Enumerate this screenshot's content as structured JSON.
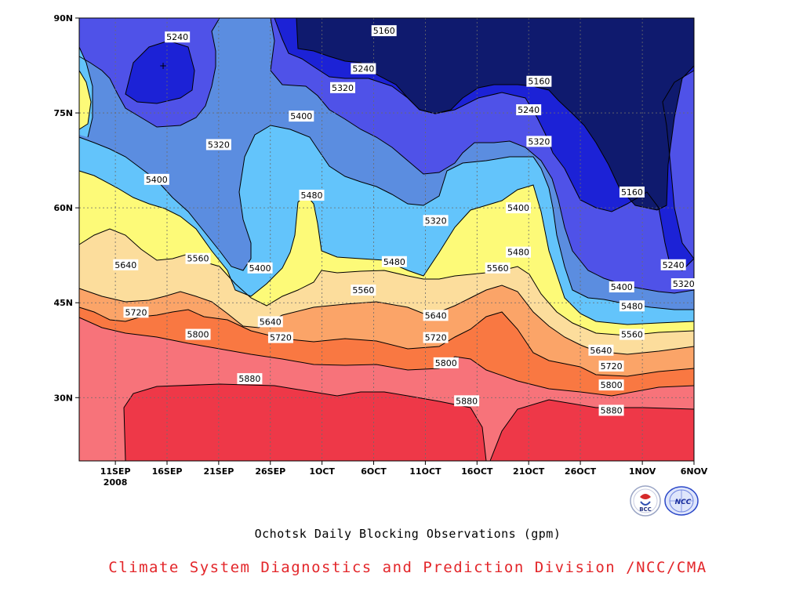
{
  "chart_data": {
    "type": "contour",
    "title": "Ochotsk Daily Blocking Observations (gpm)",
    "source": "Climate System Diagnostics and Prediction Division /NCC/CMA",
    "x_ticks": [
      "11SEP",
      "16SEP",
      "21SEP",
      "26SEP",
      "1OCT",
      "6OCT",
      "11OCT",
      "16OCT",
      "21OCT",
      "26OCT",
      "1NOV",
      "6NOV"
    ],
    "x_year_label": "2008",
    "y_ticks": [
      "90N",
      "75N",
      "60N",
      "45N",
      "30N"
    ],
    "y_tick_values": [
      90,
      75,
      60,
      45,
      30
    ],
    "ylim": [
      20,
      90
    ],
    "grid": true,
    "contour_levels": [
      5160,
      5240,
      5320,
      5400,
      5480,
      5560,
      5640,
      5720,
      5800,
      5880
    ],
    "fill_colors": {
      "below_5160": "#0f1a6e",
      "5160_5240": "#1c22d6",
      "5240_5320": "#4f52e8",
      "5320_5400": "#5b8de0",
      "5400_5480": "#63c4fb",
      "5480_5560": "#fdfa78",
      "5560_5640": "#fcdd9c",
      "5640_5720": "#fba468",
      "5720_5800": "#f97842",
      "5800_5880": "#f7737a",
      "above_5880": "#ee3848"
    },
    "contour_labels": [
      {
        "text": "5240",
        "date": "16SEP",
        "lat": 87
      },
      {
        "text": "5160",
        "date": "6OCT",
        "lat": 88
      },
      {
        "text": "5240",
        "date": "4OCT",
        "lat": 82
      },
      {
        "text": "5160",
        "date": "21OCT",
        "lat": 80
      },
      {
        "text": "5320",
        "date": "2OCT",
        "lat": 79
      },
      {
        "text": "5240",
        "date": "20OCT",
        "lat": 75.5
      },
      {
        "text": "5400",
        "date": "28SEP",
        "lat": 74.5
      },
      {
        "text": "5320",
        "date": "20SEP",
        "lat": 70
      },
      {
        "text": "5320",
        "date": "21OCT",
        "lat": 70.5
      },
      {
        "text": "5400",
        "date": "14SEP",
        "lat": 64.5
      },
      {
        "text": "5160",
        "date": "30OCT",
        "lat": 62.5
      },
      {
        "text": "5480",
        "date": "29SEP",
        "lat": 62
      },
      {
        "text": "5400",
        "date": "19OCT",
        "lat": 60
      },
      {
        "text": "5320",
        "date": "11OCT",
        "lat": 58
      },
      {
        "text": "5480",
        "date": "19OCT",
        "lat": 53
      },
      {
        "text": "5560",
        "date": "18SEP",
        "lat": 52
      },
      {
        "text": "5480",
        "date": "7OCT",
        "lat": 51.5
      },
      {
        "text": "5640",
        "date": "11SEP",
        "lat": 51
      },
      {
        "text": "5400",
        "date": "24SEP",
        "lat": 50.5
      },
      {
        "text": "5560",
        "date": "17OCT",
        "lat": 50.5
      },
      {
        "text": "5240",
        "date": "3NOV",
        "lat": 51
      },
      {
        "text": "5320",
        "date": "4NOV",
        "lat": 48
      },
      {
        "text": "5560",
        "date": "4OCT",
        "lat": 47
      },
      {
        "text": "5400",
        "date": "29OCT",
        "lat": 47.5
      },
      {
        "text": "5720",
        "date": "12SEP",
        "lat": 43.5
      },
      {
        "text": "5480",
        "date": "30OCT",
        "lat": 44.5
      },
      {
        "text": "5640",
        "date": "11OCT",
        "lat": 43
      },
      {
        "text": "5640",
        "date": "25SEP",
        "lat": 42
      },
      {
        "text": "5800",
        "date": "18SEP",
        "lat": 40
      },
      {
        "text": "5560",
        "date": "30OCT",
        "lat": 40
      },
      {
        "text": "5720",
        "date": "26SEP",
        "lat": 39.5
      },
      {
        "text": "5720",
        "date": "11OCT",
        "lat": 39.5
      },
      {
        "text": "5640",
        "date": "27OCT",
        "lat": 37.5
      },
      {
        "text": "5800",
        "date": "12OCT",
        "lat": 35.5
      },
      {
        "text": "5720",
        "date": "28OCT",
        "lat": 35
      },
      {
        "text": "5880",
        "date": "23SEP",
        "lat": 33
      },
      {
        "text": "5800",
        "date": "28OCT",
        "lat": 32
      },
      {
        "text": "5880",
        "date": "14OCT",
        "lat": 29.5
      },
      {
        "text": "5880",
        "date": "28OCT",
        "lat": 28
      }
    ]
  },
  "captions": {
    "title": "Ochotsk Daily Blocking Observations (gpm)",
    "source": "Climate System Diagnostics and Prediction Division /NCC/CMA"
  },
  "logos": {
    "bcc": "BCC",
    "ncc": "NCC"
  }
}
